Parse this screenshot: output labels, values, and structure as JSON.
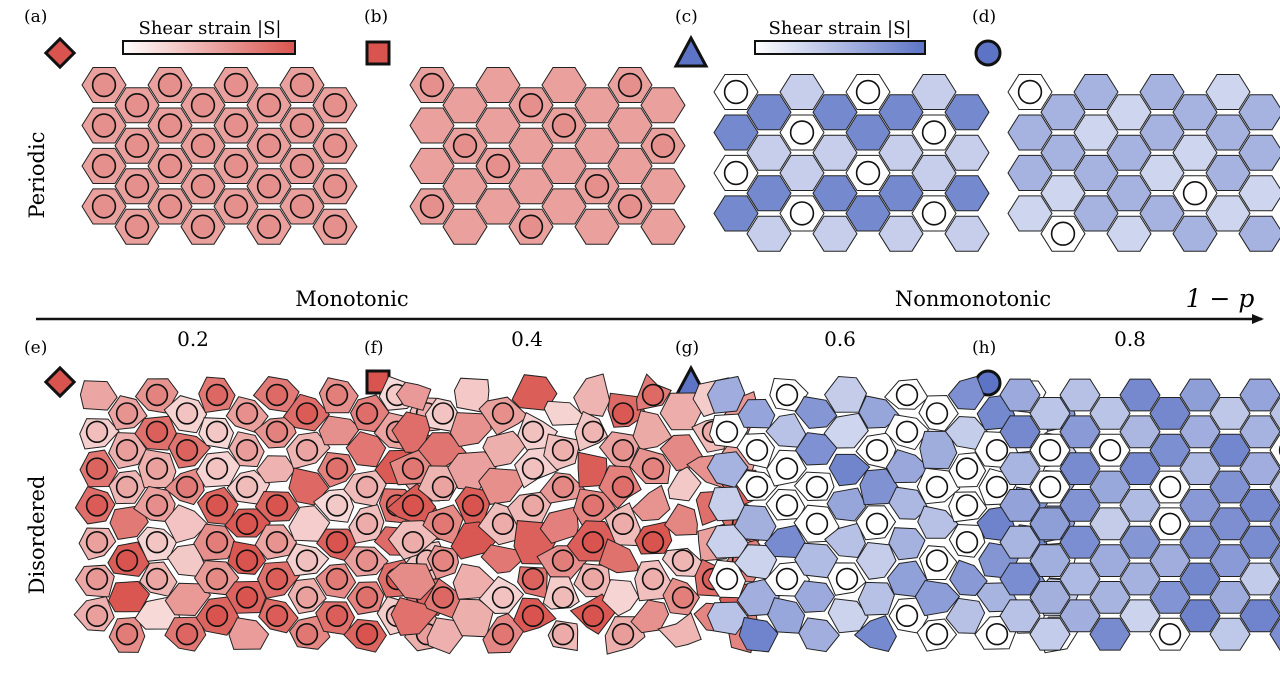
{
  "panels": {
    "a": "(a)",
    "b": "(b)",
    "c": "(c)",
    "d": "(d)",
    "e": "(e)",
    "f": "(f)",
    "g": "(g)",
    "h": "(h)"
  },
  "colorbars": {
    "red_label": "Shear strain |S|",
    "blue_label": "Shear strain |S|",
    "red_color": "#d9544f",
    "blue_color": "#5d74c6"
  },
  "row_labels": {
    "top": "Periodic",
    "bottom": "Disordered"
  },
  "axis": {
    "left_label": "Monotonic",
    "right_label": "Nonmonotonic",
    "variable": "1 − p",
    "ticks": [
      "0.2",
      "0.4",
      "0.6",
      "0.8"
    ]
  },
  "markers": [
    "diamond-red",
    "square-red",
    "triangle-blue",
    "circle-blue"
  ]
}
